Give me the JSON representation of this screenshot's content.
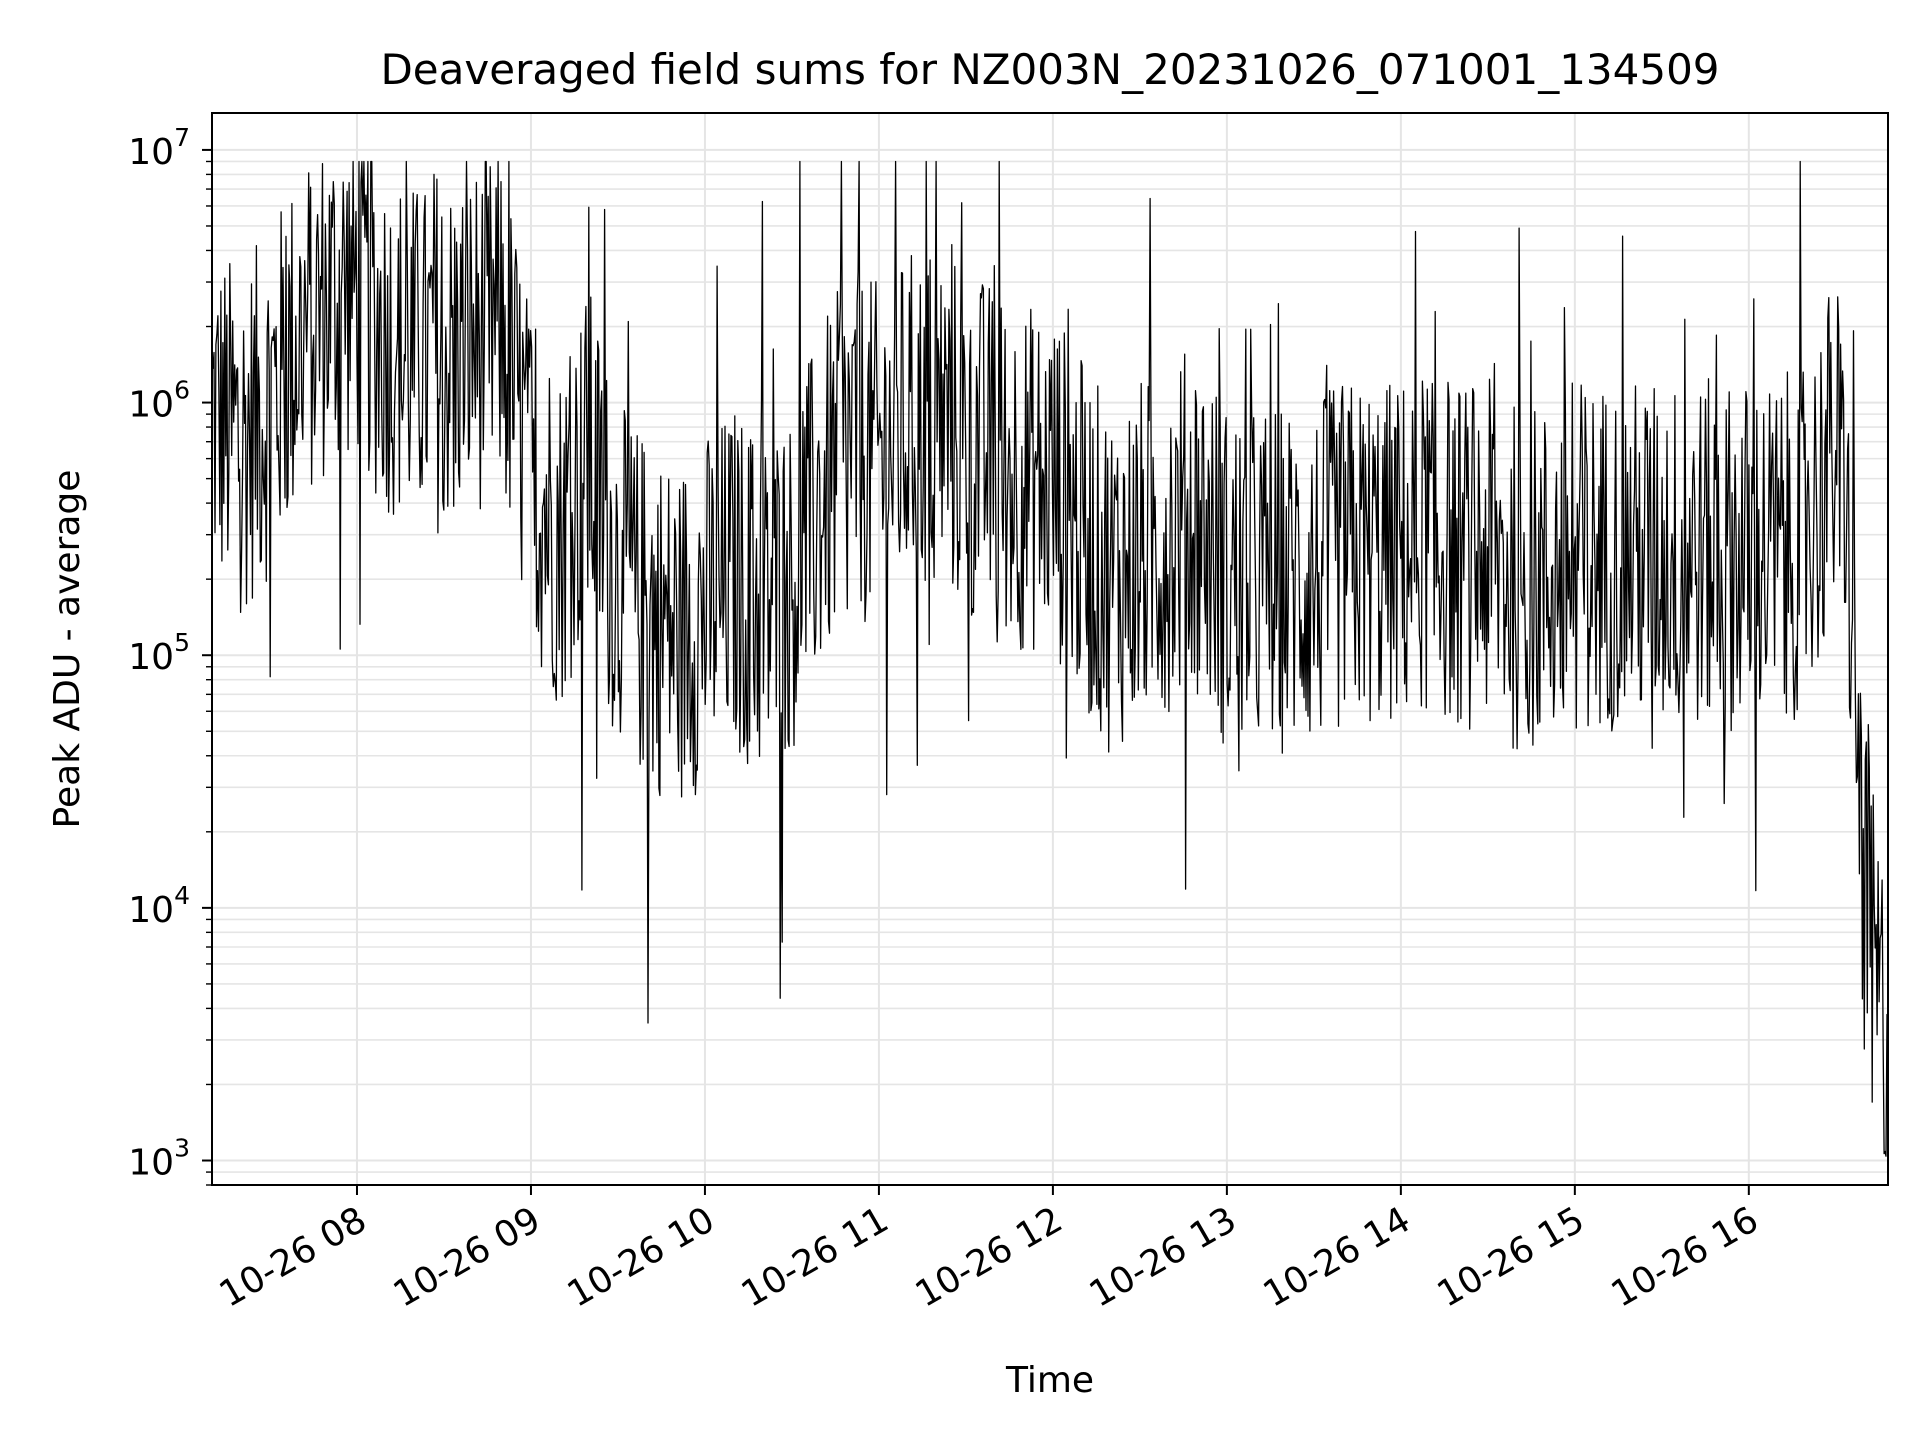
{
  "chart_data": {
    "type": "line",
    "title": "Deaveraged field sums for NZ003N_20231026_071001_134509",
    "xlabel": "Time",
    "ylabel": "Peak ADU - average",
    "yscale": "log",
    "ylim": [
      800,
      14000000
    ],
    "xlim": [
      "2023-10-26 07:10",
      "2023-10-26 16:48"
    ],
    "x_ticks": [
      "10-26 08",
      "10-26 09",
      "10-26 10",
      "10-26 11",
      "10-26 12",
      "10-26 13",
      "10-26 14",
      "10-26 15",
      "10-26 16"
    ],
    "y_ticks": [
      {
        "value": 1000,
        "base": "10",
        "exp": "3"
      },
      {
        "value": 10000,
        "base": "10",
        "exp": "4"
      },
      {
        "value": 100000,
        "base": "10",
        "exp": "5"
      },
      {
        "value": 1000000,
        "base": "10",
        "exp": "6"
      },
      {
        "value": 10000000,
        "base": "10",
        "exp": "7"
      }
    ],
    "grid": true,
    "line_color": "#000000",
    "grid_color": "#e5e5e5",
    "series": [
      {
        "x": [
          "2023-10-26 07:10",
          "2023-10-26 07:20",
          "2023-10-26 07:30",
          "2023-10-26 07:40",
          "2023-10-26 07:50",
          "2023-10-26 08:00",
          "2023-10-26 08:10",
          "2023-10-26 08:20",
          "2023-10-26 08:30",
          "2023-10-26 08:40",
          "2023-10-26 08:50",
          "2023-10-26 09:00",
          "2023-10-26 09:10",
          "2023-10-26 09:20",
          "2023-10-26 09:30",
          "2023-10-26 09:40",
          "2023-10-26 09:50",
          "2023-10-26 10:00",
          "2023-10-26 10:10",
          "2023-10-26 10:20",
          "2023-10-26 10:30",
          "2023-10-26 10:40",
          "2023-10-26 10:50",
          "2023-10-26 11:00",
          "2023-10-26 11:10",
          "2023-10-26 11:20",
          "2023-10-26 11:30",
          "2023-10-26 11:40",
          "2023-10-26 11:50",
          "2023-10-26 12:00",
          "2023-10-26 12:10",
          "2023-10-26 12:20",
          "2023-10-26 12:30",
          "2023-10-26 12:40",
          "2023-10-26 12:50",
          "2023-10-26 13:00",
          "2023-10-26 13:10",
          "2023-10-26 13:20",
          "2023-10-26 13:30",
          "2023-10-26 13:40",
          "2023-10-26 13:50",
          "2023-10-26 14:00",
          "2023-10-26 14:10",
          "2023-10-26 14:20",
          "2023-10-26 14:30",
          "2023-10-26 14:40",
          "2023-10-26 14:50",
          "2023-10-26 15:00",
          "2023-10-26 15:10",
          "2023-10-26 15:20",
          "2023-10-26 15:30",
          "2023-10-26 15:40",
          "2023-10-26 15:50",
          "2023-10-26 16:00",
          "2023-10-26 16:10",
          "2023-10-26 16:20",
          "2023-10-26 16:30",
          "2023-10-26 16:35",
          "2023-10-26 16:40",
          "2023-10-26 16:44",
          "2023-10-26 16:48"
        ],
        "y": [
          900000,
          700000,
          1000000,
          1800000,
          2500000,
          3000000,
          1800000,
          1500000,
          1500000,
          1800000,
          2000000,
          500000,
          300000,
          600000,
          200000,
          150000,
          120000,
          150000,
          200000,
          150000,
          200000,
          400000,
          700000,
          600000,
          800000,
          900000,
          700000,
          600000,
          500000,
          500000,
          300000,
          200000,
          250000,
          300000,
          350000,
          200000,
          200000,
          200000,
          200000,
          250000,
          250000,
          250000,
          300000,
          250000,
          250000,
          200000,
          200000,
          250000,
          250000,
          250000,
          250000,
          250000,
          250000,
          250000,
          250000,
          300000,
          700000,
          200000,
          10000,
          5000,
          2500
        ]
      }
    ]
  }
}
